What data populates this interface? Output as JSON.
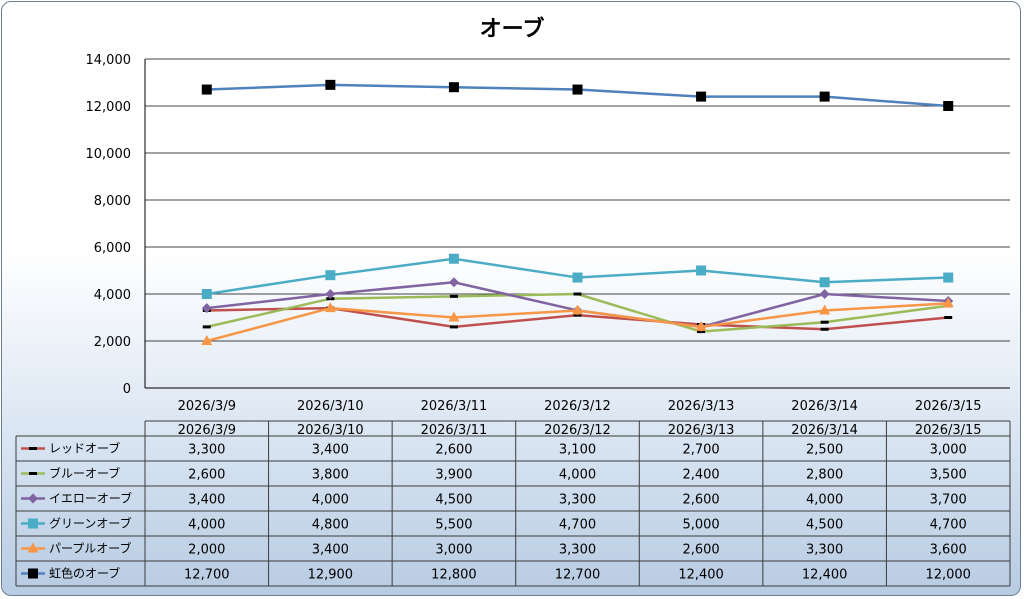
{
  "chart_data": {
    "type": "line",
    "title": "オーブ",
    "xlabel": "",
    "ylabel": "",
    "ylim": [
      0,
      14000
    ],
    "yticks": [
      "0",
      "2,000",
      "4,000",
      "6,000",
      "8,000",
      "10,000",
      "12,000",
      "14,000"
    ],
    "grid": true,
    "legend": "data-table",
    "categories": [
      "2026/3/9",
      "2026/3/10",
      "2026/3/11",
      "2026/3/12",
      "2026/3/13",
      "2026/3/14",
      "2026/3/15"
    ],
    "series": [
      {
        "name": "レッドオーブ",
        "color": "#c0504d",
        "marker": "dash",
        "values": [
          3300,
          3400,
          2600,
          3100,
          2700,
          2500,
          3000
        ],
        "labels": [
          "3,300",
          "3,400",
          "2,600",
          "3,100",
          "2,700",
          "2,500",
          "3,000"
        ]
      },
      {
        "name": "ブルーオーブ",
        "color": "#9bbb59",
        "marker": "dash",
        "values": [
          2600,
          3800,
          3900,
          4000,
          2400,
          2800,
          3500
        ],
        "labels": [
          "2,600",
          "3,800",
          "3,900",
          "4,000",
          "2,400",
          "2,800",
          "3,500"
        ]
      },
      {
        "name": "イエローオーブ",
        "color": "#8064a2",
        "marker": "diamond",
        "values": [
          3400,
          4000,
          4500,
          3300,
          2600,
          4000,
          3700
        ],
        "labels": [
          "3,400",
          "4,000",
          "4,500",
          "3,300",
          "2,600",
          "4,000",
          "3,700"
        ]
      },
      {
        "name": "グリーンオーブ",
        "color": "#4bacc6",
        "marker": "square",
        "values": [
          4000,
          4800,
          5500,
          4700,
          5000,
          4500,
          4700
        ],
        "labels": [
          "4,000",
          "4,800",
          "5,500",
          "4,700",
          "5,000",
          "4,500",
          "4,700"
        ]
      },
      {
        "name": "パープルオーブ",
        "color": "#f79646",
        "marker": "triangle",
        "values": [
          2000,
          3400,
          3000,
          3300,
          2600,
          3300,
          3600
        ],
        "labels": [
          "2,000",
          "3,400",
          "3,000",
          "3,300",
          "2,600",
          "3,300",
          "3,600"
        ]
      },
      {
        "name": "虹色のオーブ",
        "color": "#4f81bd",
        "marker": "square-black",
        "values": [
          12700,
          12900,
          12800,
          12700,
          12400,
          12400,
          12000
        ],
        "labels": [
          "12,700",
          "12,900",
          "12,800",
          "12,700",
          "12,400",
          "12,400",
          "12,000"
        ]
      }
    ]
  }
}
